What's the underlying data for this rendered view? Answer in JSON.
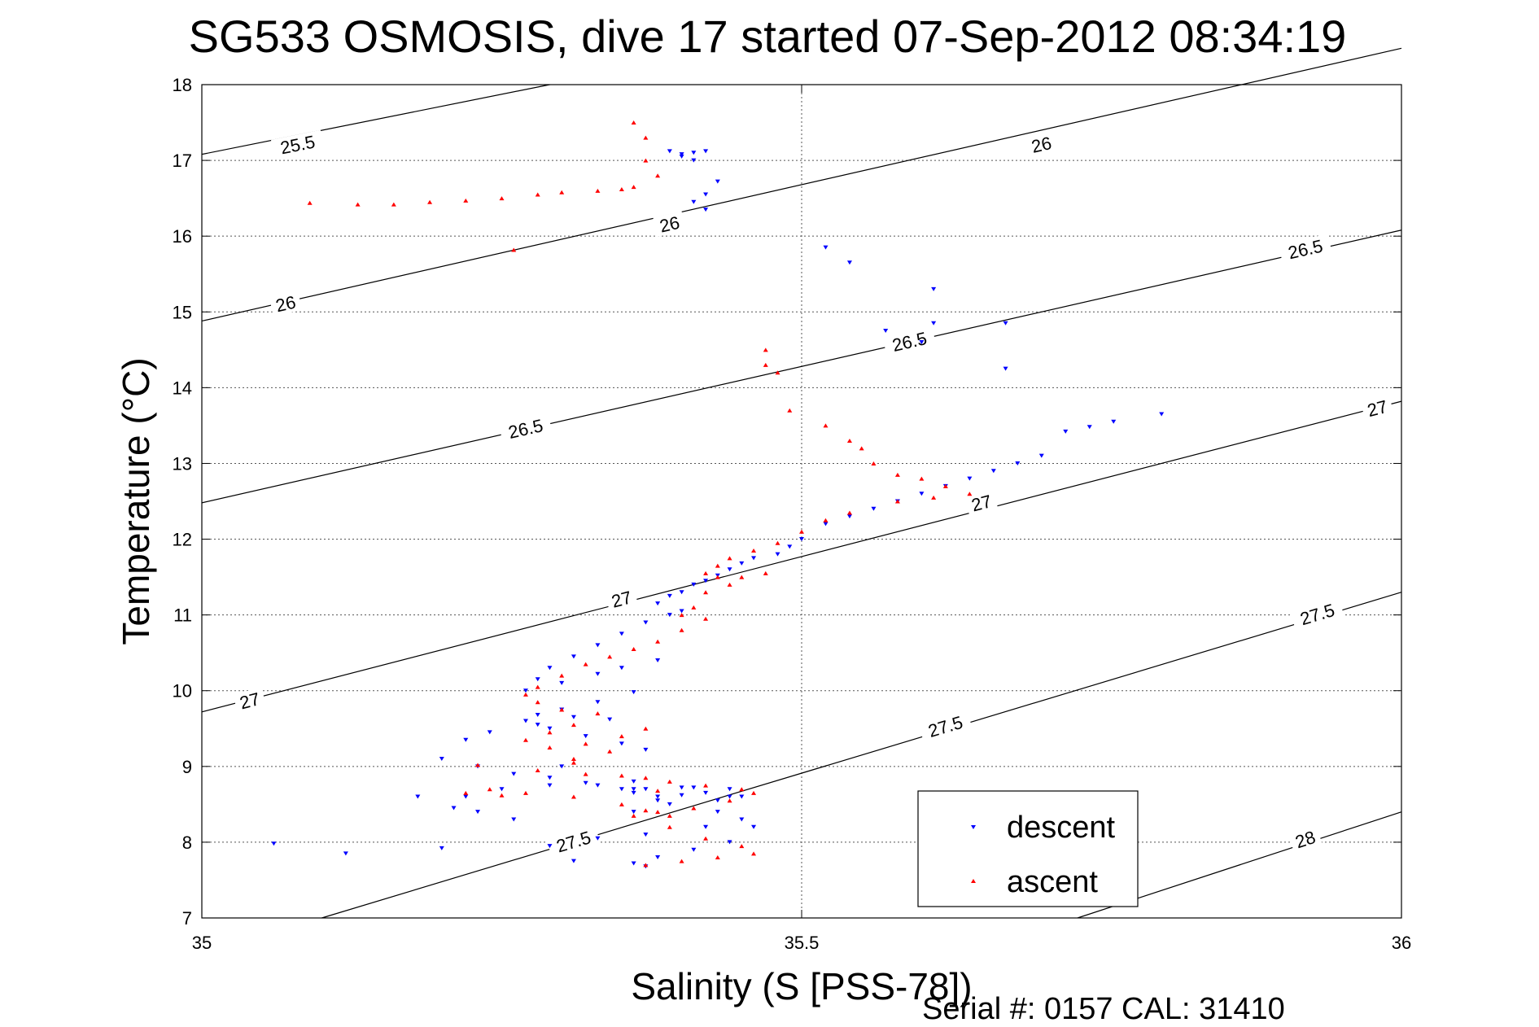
{
  "chart_data": {
    "type": "scatter",
    "title": "SG533 OSMOSIS, dive 17 started 07-Sep-2012 08:34:19",
    "xlabel": "Salinity (S [PSS-78])",
    "ylabel": "Temperature (°C)",
    "footer": "Serial #: 0157  CAL: 31410",
    "xlim": [
      35,
      36
    ],
    "ylim": [
      7,
      18
    ],
    "xticks": [
      35,
      35.5,
      36
    ],
    "xtick_labels": [
      "35",
      "35.5",
      "36"
    ],
    "yticks": [
      7,
      8,
      9,
      10,
      11,
      12,
      13,
      14,
      15,
      16,
      17,
      18
    ],
    "ytick_labels": [
      "7",
      "8",
      "9",
      "10",
      "11",
      "12",
      "13",
      "14",
      "15",
      "16",
      "17",
      "18"
    ],
    "grid": true,
    "legend_position": "bottom-right",
    "contour_levels": [
      {
        "level": "25.5",
        "label": "25.5",
        "line": [
          [
            35,
            17.08
          ],
          [
            35.29,
            18
          ]
        ],
        "label_at": [
          [
            35.08,
            17.2
          ]
        ]
      },
      {
        "level": "26",
        "label": "26",
        "line": [
          [
            35,
            14.88
          ],
          [
            36,
            18.48
          ]
        ],
        "label_at": [
          [
            35.07,
            15.1
          ],
          [
            35.39,
            16.15
          ],
          [
            35.7,
            17.2
          ]
        ]
      },
      {
        "level": "26.5",
        "label": "26.5",
        "line": [
          [
            35,
            12.48
          ],
          [
            36,
            16.08
          ]
        ],
        "label_at": [
          [
            35.27,
            13.45
          ],
          [
            35.59,
            14.6
          ],
          [
            35.92,
            15.82
          ]
        ]
      },
      {
        "level": "27",
        "label": "27",
        "line": [
          [
            35,
            9.72
          ],
          [
            36,
            13.82
          ]
        ],
        "label_at": [
          [
            35.04,
            9.86
          ],
          [
            35.35,
            11.2
          ],
          [
            35.65,
            12.47
          ],
          [
            35.98,
            13.72
          ]
        ]
      },
      {
        "level": "27.5",
        "label": "27.5",
        "line": [
          [
            35.1,
            7
          ],
          [
            36,
            11.3
          ]
        ],
        "label_at": [
          [
            35.31,
            8.0
          ],
          [
            35.62,
            9.52
          ],
          [
            35.93,
            11.0
          ]
        ]
      },
      {
        "level": "28",
        "label": "28",
        "line": [
          [
            35.73,
            7
          ],
          [
            36,
            8.4
          ]
        ],
        "label_at": [
          [
            35.92,
            8.03
          ]
        ]
      }
    ],
    "series": [
      {
        "name": "descent",
        "color": "#0000ff",
        "marker": "triangle-down",
        "x": [
          35.39,
          35.4,
          35.41,
          35.42,
          35.41,
          35.42,
          35.43,
          35.42,
          35.41,
          35.4,
          35.52,
          35.54,
          35.61,
          35.61,
          35.57,
          35.6,
          35.67,
          35.67,
          35.8,
          35.76,
          35.74,
          35.72,
          35.7,
          35.68,
          35.66,
          35.64,
          35.62,
          35.6,
          35.58,
          35.56,
          35.54,
          35.52,
          35.5,
          35.49,
          35.48,
          35.46,
          35.45,
          35.44,
          35.43,
          35.42,
          35.41,
          35.4,
          35.39,
          35.38,
          35.4,
          35.39,
          35.37,
          35.35,
          35.33,
          35.31,
          35.29,
          35.28,
          35.27,
          35.3,
          35.33,
          35.35,
          35.38,
          35.36,
          35.33,
          35.3,
          35.28,
          35.27,
          35.29,
          35.32,
          35.35,
          35.37,
          35.34,
          35.31,
          35.28,
          35.24,
          35.22,
          35.2,
          35.23,
          35.26,
          35.29,
          35.33,
          35.37,
          35.41,
          35.44,
          35.45,
          35.43,
          35.42,
          35.4,
          35.38,
          35.36,
          35.35,
          35.39,
          35.43,
          35.45,
          35.42,
          35.37,
          35.33,
          35.29,
          35.26,
          35.23,
          35.21,
          35.22,
          35.25,
          35.29,
          35.32,
          35.36,
          35.4,
          35.44,
          35.46,
          35.44,
          35.41,
          35.38,
          35.36,
          35.37,
          35.2,
          35.12,
          35.18,
          35.06,
          35.31,
          35.3,
          35.36,
          35.38,
          35.36
        ],
        "y": [
          17.12,
          17.05,
          17.1,
          17.12,
          16.45,
          16.55,
          16.72,
          16.35,
          17.0,
          17.08,
          15.85,
          15.65,
          15.3,
          14.85,
          14.75,
          14.6,
          14.85,
          14.25,
          13.65,
          13.55,
          13.48,
          13.42,
          13.1,
          13.0,
          12.9,
          12.8,
          12.7,
          12.6,
          12.5,
          12.4,
          12.3,
          12.2,
          12.0,
          11.9,
          11.8,
          11.75,
          11.68,
          11.6,
          11.52,
          11.45,
          11.4,
          11.3,
          11.25,
          11.15,
          11.05,
          11.0,
          10.9,
          10.75,
          10.6,
          10.45,
          10.3,
          10.15,
          10.0,
          10.1,
          10.22,
          10.3,
          10.4,
          9.98,
          9.85,
          9.75,
          9.68,
          9.6,
          9.5,
          9.4,
          9.3,
          9.22,
          9.62,
          9.65,
          9.55,
          9.45,
          9.35,
          9.1,
          9.0,
          8.9,
          8.85,
          8.75,
          8.7,
          8.72,
          8.7,
          8.6,
          8.55,
          8.65,
          8.62,
          8.55,
          8.65,
          8.7,
          8.5,
          8.4,
          8.3,
          8.2,
          8.1,
          8.05,
          7.95,
          8.3,
          8.4,
          8.45,
          8.6,
          8.7,
          8.75,
          8.78,
          8.8,
          8.72,
          8.6,
          8.2,
          8.0,
          7.9,
          7.8,
          7.72,
          7.68,
          7.92,
          7.85,
          8.6,
          7.98,
          7.75,
          9.0,
          8.7,
          8.6,
          8.4
        ]
      },
      {
        "name": "ascent",
        "color": "#ff0000",
        "marker": "triangle-up",
        "x": [
          35.36,
          35.37,
          35.37,
          35.38,
          35.36,
          35.35,
          35.33,
          35.3,
          35.28,
          35.25,
          35.22,
          35.19,
          35.16,
          35.13,
          35.09,
          35.26,
          35.47,
          35.47,
          35.48,
          35.49,
          35.52,
          35.54,
          35.55,
          35.56,
          35.58,
          35.6,
          35.62,
          35.64,
          35.61,
          35.58,
          35.54,
          35.52,
          35.5,
          35.48,
          35.46,
          35.44,
          35.43,
          35.42,
          35.43,
          35.45,
          35.47,
          35.44,
          35.42,
          35.41,
          35.4,
          35.42,
          35.4,
          35.38,
          35.36,
          35.34,
          35.32,
          35.3,
          35.28,
          35.27,
          35.28,
          35.3,
          35.33,
          35.31,
          35.29,
          35.27,
          35.29,
          35.32,
          35.35,
          35.37,
          35.34,
          35.31,
          35.28,
          35.32,
          35.35,
          35.37,
          35.39,
          35.42,
          35.45,
          35.46,
          35.44,
          35.41,
          35.38,
          35.36,
          35.39,
          35.42,
          35.45,
          35.46,
          35.43,
          35.4,
          35.37,
          35.24,
          35.27,
          35.31,
          35.38,
          35.23,
          35.31,
          35.35,
          35.37,
          35.39,
          35.22,
          35.25
        ],
        "y": [
          17.5,
          17.3,
          17.0,
          16.8,
          16.65,
          16.62,
          16.6,
          16.58,
          16.55,
          16.5,
          16.47,
          16.45,
          16.42,
          16.42,
          16.44,
          15.82,
          14.5,
          14.3,
          14.2,
          13.7,
          13.5,
          13.3,
          13.2,
          13.0,
          12.85,
          12.8,
          12.7,
          12.6,
          12.55,
          12.5,
          12.35,
          12.25,
          12.1,
          11.95,
          11.85,
          11.75,
          11.65,
          11.55,
          11.5,
          11.5,
          11.55,
          11.4,
          11.3,
          11.1,
          11.0,
          10.95,
          10.8,
          10.65,
          10.55,
          10.45,
          10.35,
          10.2,
          10.05,
          9.95,
          9.85,
          9.75,
          9.7,
          9.55,
          9.45,
          9.35,
          9.25,
          9.3,
          9.4,
          9.5,
          9.2,
          9.05,
          8.95,
          8.9,
          8.88,
          8.85,
          8.8,
          8.75,
          8.7,
          8.65,
          8.55,
          8.45,
          8.4,
          8.35,
          8.2,
          8.05,
          7.95,
          7.85,
          7.8,
          7.75,
          7.7,
          8.7,
          8.65,
          8.6,
          8.68,
          9.02,
          9.1,
          8.5,
          8.42,
          8.35,
          8.65,
          8.62
        ]
      }
    ]
  }
}
